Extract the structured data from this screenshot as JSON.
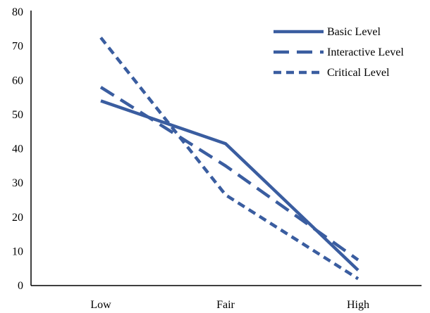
{
  "chart_data": {
    "type": "line",
    "categories": [
      "Low",
      "Fair",
      "High"
    ],
    "y_ticks": [
      "0",
      "10",
      "20",
      "30",
      "40",
      "50",
      "60",
      "70",
      "80"
    ],
    "ylim": [
      0,
      80
    ],
    "grid": false,
    "legend_position": "top-right",
    "series_color": "#3a5da0",
    "series": [
      {
        "name": "Basic Level",
        "values": [
          54,
          41.5,
          4.5
        ],
        "dash": "solid"
      },
      {
        "name": "Interactive Level",
        "values": [
          58,
          35,
          7.5
        ],
        "dash": "long-dash"
      },
      {
        "name": "Critical Level",
        "values": [
          72.5,
          26.5,
          2
        ],
        "dash": "short-dash"
      }
    ]
  }
}
